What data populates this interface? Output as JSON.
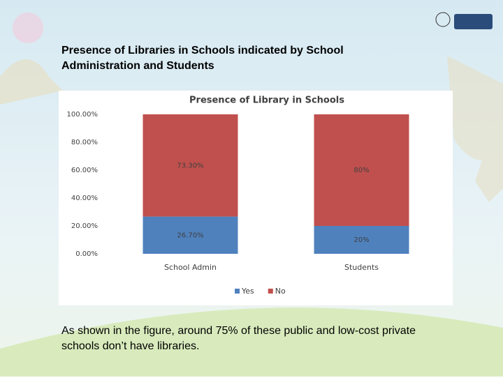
{
  "slide": {
    "title": "Presence of Libraries in Schools indicated by School Administration and Students",
    "caption": "As shown in the figure, around 75% of these public and low-cost private schools don’t have libraries."
  },
  "chart_data": {
    "type": "bar",
    "stacked": true,
    "title": "Presence of Library in Schools",
    "categories": [
      "School Admin",
      "Students"
    ],
    "series": [
      {
        "name": "Yes",
        "color": "#4f81bd",
        "values": [
          26.7,
          20
        ],
        "value_labels": [
          "26.70%",
          "20%"
        ]
      },
      {
        "name": "No",
        "color": "#c0504d",
        "values": [
          73.3,
          80
        ],
        "value_labels": [
          "73.30%",
          "80%"
        ]
      }
    ],
    "ylim": [
      0,
      100
    ],
    "yticks": [
      {
        "value": 0,
        "label": "0.00%"
      },
      {
        "value": 20,
        "label": "20.00%"
      },
      {
        "value": 40,
        "label": "40.00%"
      },
      {
        "value": 60,
        "label": "60.00%"
      },
      {
        "value": 80,
        "label": "80.00%"
      },
      {
        "value": 100,
        "label": "100.00%"
      }
    ],
    "grid": false,
    "legend": "bottom"
  }
}
